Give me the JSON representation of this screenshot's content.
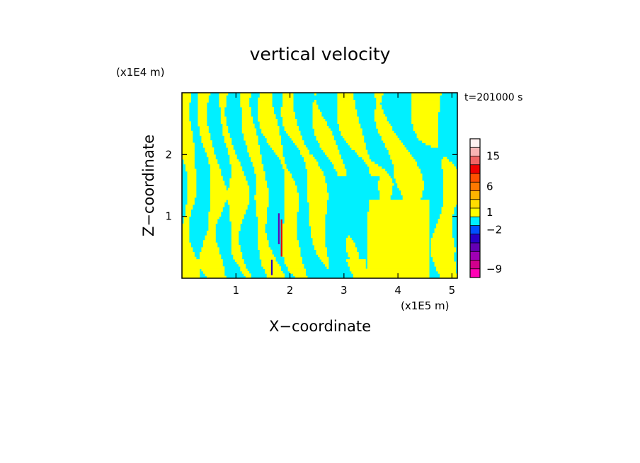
{
  "chart_data": {
    "type": "heatmap",
    "title": "vertical velocity",
    "xlabel": "X−coordinate",
    "ylabel": "Z−coordinate",
    "x_unit": "(x1E5 m)",
    "y_unit": "(x1E4 m)",
    "time_label": "t=201000 s",
    "xlim": [
      0,
      5.1
    ],
    "ylim": [
      0,
      3.0
    ],
    "x_ticks": [
      {
        "value": 1,
        "label": "1"
      },
      {
        "value": 2,
        "label": "2"
      },
      {
        "value": 3,
        "label": "3"
      },
      {
        "value": 4,
        "label": "4"
      },
      {
        "value": 5,
        "label": "5"
      }
    ],
    "y_ticks": [
      {
        "value": 1,
        "label": "1"
      },
      {
        "value": 2,
        "label": "2"
      }
    ],
    "background_level_color": "#00f0ff",
    "positive_level_color": "#ffff00",
    "colorbar": {
      "levels": [
        {
          "color": "#ff00b4"
        },
        {
          "color": "#d2008c"
        },
        {
          "color": "#a000b4"
        },
        {
          "color": "#6400b4"
        },
        {
          "color": "#2800c8"
        },
        {
          "color": "#0050ff"
        },
        {
          "color": "#00f0ff"
        },
        {
          "color": "#ffff00"
        },
        {
          "color": "#ffdc00"
        },
        {
          "color": "#ffb400"
        },
        {
          "color": "#ff7800"
        },
        {
          "color": "#ff5000"
        },
        {
          "color": "#f00000"
        },
        {
          "color": "#f06464"
        },
        {
          "color": "#f8b4b4"
        },
        {
          "color": "#fff0f0"
        }
      ],
      "labels": [
        {
          "text": "−9",
          "at_level": 1
        },
        {
          "text": "−2",
          "at_level": 5.5
        },
        {
          "text": "1",
          "at_level": 7.5
        },
        {
          "text": "6",
          "at_level": 10.5
        },
        {
          "text": "15",
          "at_level": 14
        }
      ]
    }
  }
}
